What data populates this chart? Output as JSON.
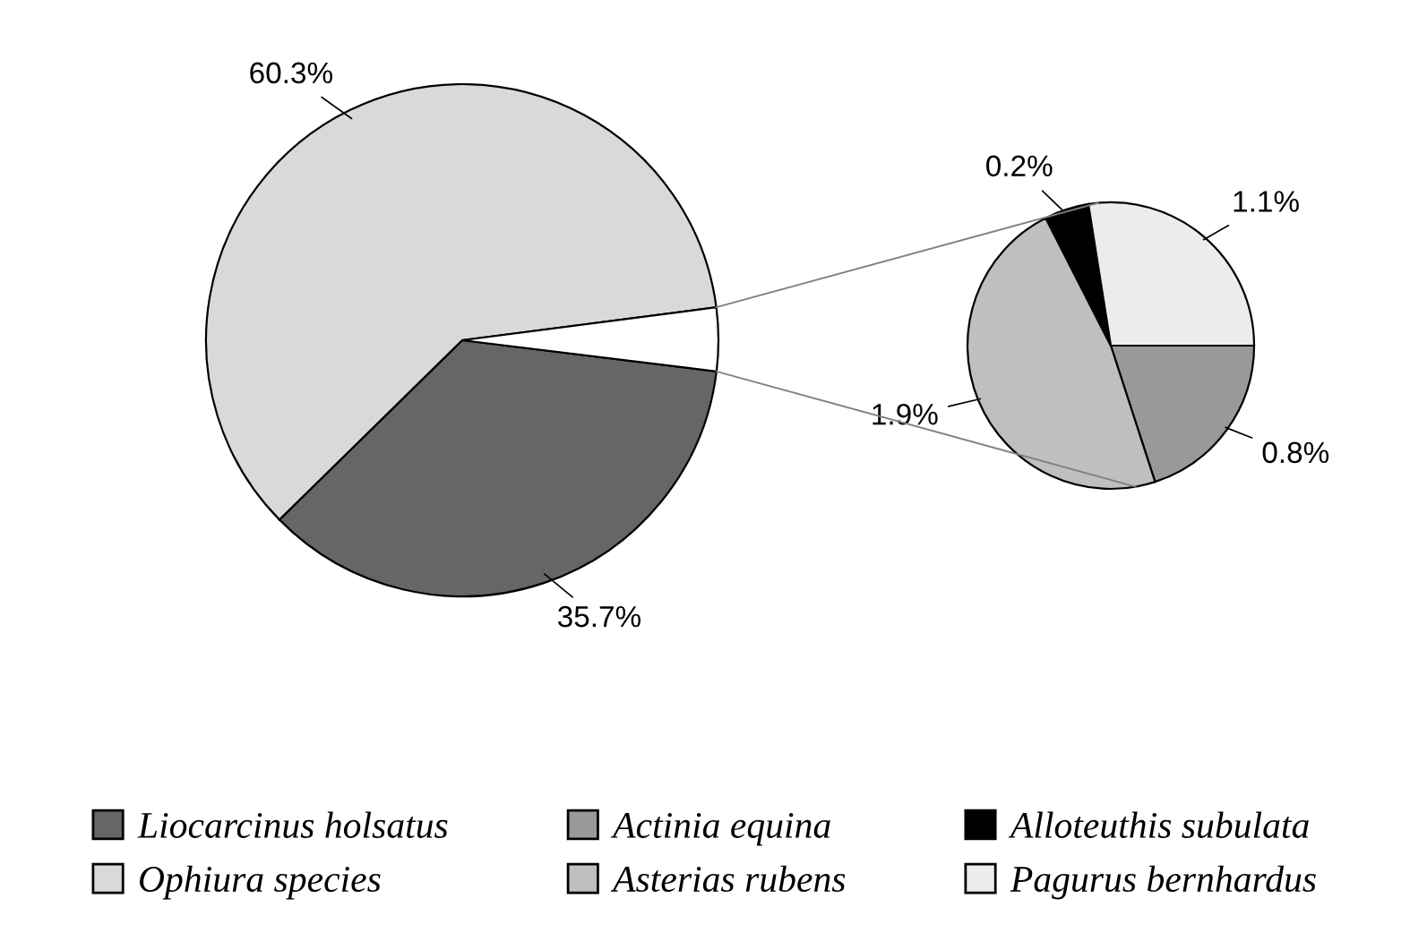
{
  "chart_data": [
    {
      "type": "pie",
      "categories": [
        "Liocarcinus holsatus",
        "Ophiura species",
        null
      ],
      "values": [
        35.7,
        60.3,
        4.0
      ],
      "colors": [
        "#666666",
        "#d9d9d9",
        "#ffffff"
      ],
      "value_labels": [
        "35.7%",
        "60.3%",
        null
      ],
      "legend": "bottom"
    },
    {
      "type": "pie",
      "categories": [
        "Actinia equina",
        "Asterias rubens",
        "Alloteuthis subulata",
        "Pagurus bernhardus"
      ],
      "values": [
        0.8,
        1.9,
        0.2,
        1.1
      ],
      "colors": [
        "#999999",
        "#bfbfbf",
        "#000000",
        "#ececec"
      ],
      "value_labels": [
        "0.8%",
        "1.9%",
        "0.2%",
        "1.1%"
      ],
      "legend": "bottom"
    }
  ]
}
